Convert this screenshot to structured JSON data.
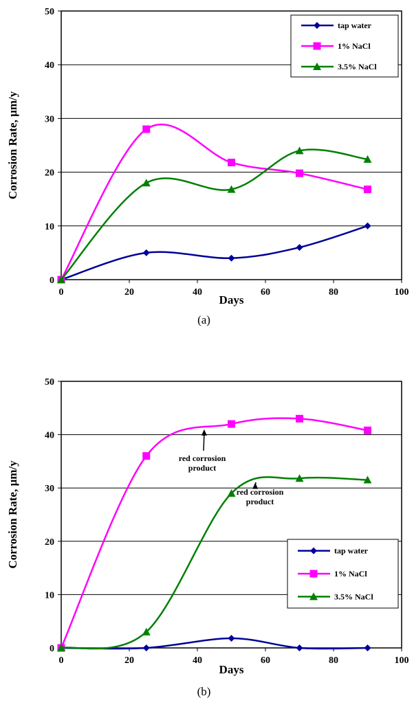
{
  "chart_data": [
    {
      "type": "line",
      "panel_label": "(a)",
      "xlabel": "Days",
      "ylabel": "Corrosion Rate, µm/y",
      "xlim": [
        0,
        100
      ],
      "ylim": [
        0,
        50
      ],
      "xticks": [
        0,
        20,
        40,
        60,
        80,
        100
      ],
      "yticks": [
        0,
        10,
        20,
        30,
        40,
        50
      ],
      "grid": "horizontal",
      "legend_position": "top-right",
      "series": [
        {
          "name": "tap water",
          "color": "#000099",
          "marker": "diamond",
          "x": [
            0,
            25,
            50,
            70,
            90
          ],
          "y": [
            0,
            5,
            4,
            6,
            10
          ]
        },
        {
          "name": "1% NaCl",
          "color": "#ff00ff",
          "marker": "square",
          "x": [
            0,
            25,
            50,
            70,
            90
          ],
          "y": [
            0,
            28,
            21.8,
            19.8,
            16.8
          ]
        },
        {
          "name": "3.5% NaCl",
          "color": "#008000",
          "marker": "triangle",
          "x": [
            0,
            25,
            50,
            70,
            90
          ],
          "y": [
            0,
            18,
            16.8,
            24,
            22.4
          ]
        }
      ],
      "annotations": []
    },
    {
      "type": "line",
      "panel_label": "(b)",
      "xlabel": "Days",
      "ylabel": "Corrosion Rate, µm/y",
      "xlim": [
        0,
        100
      ],
      "ylim": [
        0,
        50
      ],
      "xticks": [
        0,
        20,
        40,
        60,
        80,
        100
      ],
      "yticks": [
        0,
        10,
        20,
        30,
        40,
        50
      ],
      "grid": "horizontal",
      "legend_position": "bottom-right",
      "series": [
        {
          "name": "tap water",
          "color": "#000099",
          "marker": "diamond",
          "x": [
            0,
            25,
            50,
            70,
            90
          ],
          "y": [
            0,
            0,
            1.8,
            0,
            0
          ]
        },
        {
          "name": "1% NaCl",
          "color": "#ff00ff",
          "marker": "square",
          "x": [
            0,
            25,
            50,
            70,
            90
          ],
          "y": [
            0,
            36,
            42,
            43,
            40.8
          ]
        },
        {
          "name": "3.5% NaCl",
          "color": "#008000",
          "marker": "triangle",
          "x": [
            0,
            25,
            50,
            70,
            90
          ],
          "y": [
            0,
            3,
            29,
            31.8,
            31.5
          ]
        }
      ],
      "annotations": [
        {
          "lines": [
            "red corrosion",
            "product"
          ],
          "arrow_to": [
            42,
            41
          ]
        },
        {
          "lines": [
            "red corrosion",
            "product"
          ],
          "arrow_to": [
            57,
            31
          ]
        }
      ]
    }
  ]
}
